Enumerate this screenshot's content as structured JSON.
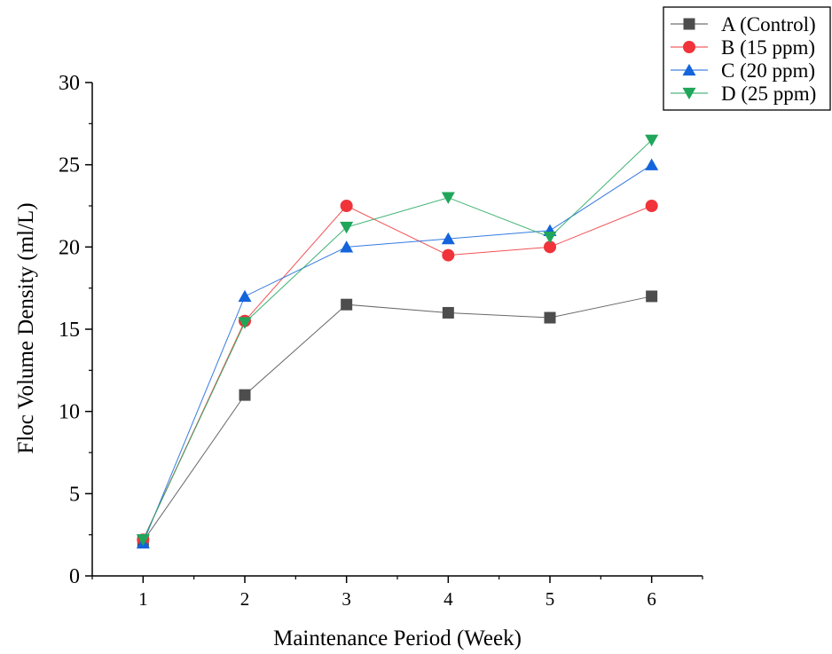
{
  "chart_data": {
    "type": "line",
    "title": "",
    "xlabel": "Maintenance Period (Week)",
    "ylabel": "Floc Volume Density (ml/L)",
    "x": [
      1,
      2,
      3,
      4,
      5,
      6
    ],
    "x_ticks": [
      "1",
      "2",
      "3",
      "4",
      "5",
      "6"
    ],
    "xlim": [
      0.5,
      6.5
    ],
    "ylim": [
      0,
      30
    ],
    "y_ticks": [
      "0",
      "5",
      "10",
      "15",
      "20",
      "25",
      "30"
    ],
    "grid": false,
    "legend_position": "top-right",
    "series": [
      {
        "name": "A (Control)",
        "color": "#4d4d4d",
        "marker": "square",
        "values": [
          2.1,
          11,
          16.5,
          16,
          15.7,
          17
        ]
      },
      {
        "name": "B (15 ppm)",
        "color": "#f0343a",
        "marker": "circle",
        "values": [
          2.2,
          15.5,
          22.5,
          19.5,
          20,
          22.5
        ]
      },
      {
        "name": "C (20 ppm)",
        "color": "#1464dc",
        "marker": "triangle-up",
        "values": [
          2.0,
          17,
          20,
          20.5,
          21,
          25
        ]
      },
      {
        "name": "D (25 ppm)",
        "color": "#1fa65a",
        "marker": "triangle-down",
        "values": [
          2.2,
          15.4,
          21.2,
          23,
          20.6,
          26.5
        ]
      }
    ]
  }
}
